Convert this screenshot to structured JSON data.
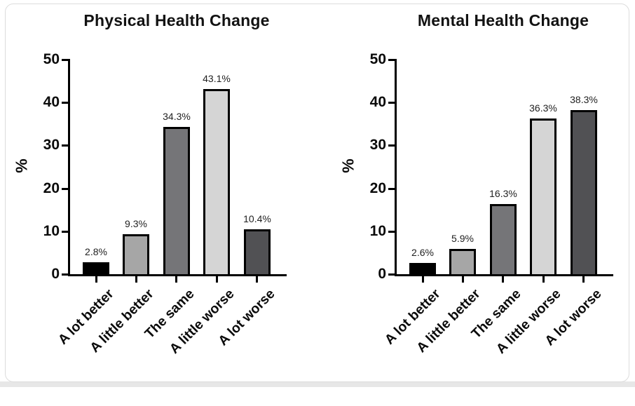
{
  "page": {
    "background": "#ffffff",
    "card_background": "#ffffff",
    "card_border_color": "#dcdcdc",
    "bottom_strip_color": "#e7e7e7",
    "axis_color": "#000000",
    "text_color": "#0a0a0a"
  },
  "chart_data": [
    {
      "type": "bar",
      "title": "Physical Health Change",
      "categories": [
        "A lot better",
        "A little better",
        "The same",
        "A little worse",
        "A lot worse"
      ],
      "values": [
        2.8,
        9.3,
        34.3,
        43.1,
        10.4
      ],
      "value_labels": [
        "2.8%",
        "9.3%",
        "34.3%",
        "43.1%",
        "10.4%"
      ],
      "xlabel": "",
      "ylabel": "%",
      "ylim": [
        0,
        50
      ],
      "yticks": [
        0,
        10,
        20,
        30,
        40,
        50
      ],
      "grid": false,
      "legend": null,
      "bar_colors": [
        "#000000",
        "#a6a6a6",
        "#757578",
        "#d5d5d5",
        "#515154"
      ],
      "bar_border_color": "#000000"
    },
    {
      "type": "bar",
      "title": "Mental Health Change",
      "categories": [
        "A lot better",
        "A little better",
        "The same",
        "A little worse",
        "A lot worse"
      ],
      "values": [
        2.6,
        5.9,
        16.3,
        36.3,
        38.3
      ],
      "value_labels": [
        "2.6%",
        "5.9%",
        "16.3%",
        "36.3%",
        "38.3%"
      ],
      "xlabel": "",
      "ylabel": "%",
      "ylim": [
        0,
        50
      ],
      "yticks": [
        0,
        10,
        20,
        30,
        40,
        50
      ],
      "grid": false,
      "legend": null,
      "bar_colors": [
        "#000000",
        "#a6a6a6",
        "#757578",
        "#d5d5d5",
        "#515154"
      ],
      "bar_border_color": "#000000"
    }
  ]
}
